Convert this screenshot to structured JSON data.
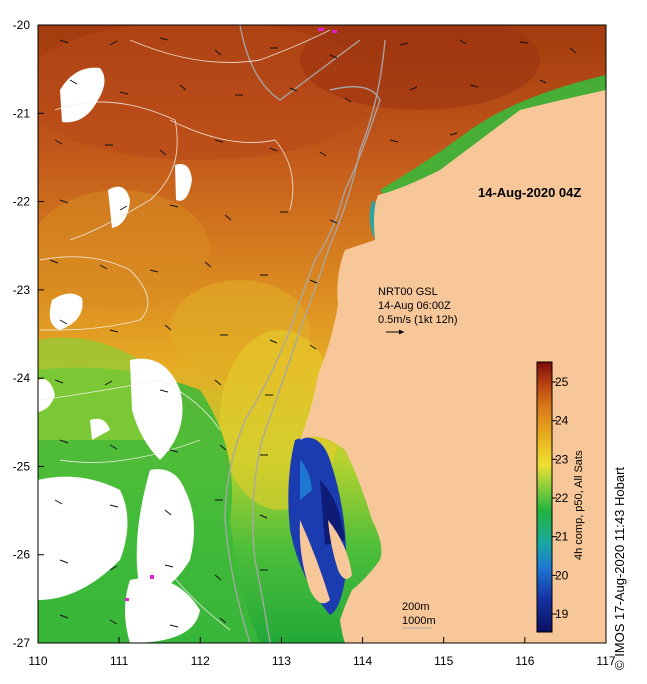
{
  "timestamp": "14-Aug-2020 04Z",
  "overlay": {
    "line1": "NRT00 GSL",
    "line2": "14-Aug 06:00Z",
    "line3": "0.5m/s (1kt 12h)"
  },
  "x_ticks": [
    "110",
    "111",
    "112",
    "113",
    "114",
    "115",
    "116",
    "117"
  ],
  "y_ticks": [
    "-20",
    "-21",
    "-22",
    "-23",
    "-24",
    "-25",
    "-26",
    "-27"
  ],
  "colorbar": {
    "title": "4h comp, p50, All Sats",
    "ticks": [
      "25",
      "24",
      "23",
      "22",
      "21",
      "20",
      "19"
    ],
    "colors": [
      "#7a0c0c",
      "#b23a10",
      "#d8761a",
      "#e8b020",
      "#f0e030",
      "#9ad23c",
      "#22b43c",
      "#18a8a0",
      "#1e78d2",
      "#1432a0",
      "#0a1060"
    ]
  },
  "scale": {
    "depth1": "200m",
    "depth2": "1000m"
  },
  "credit": "© IMOS 17-Aug-2020 11:43 Hobart",
  "colors": {
    "land": "#f7c79a",
    "cloud": "#ffffff",
    "isobath": "#aaaaaa",
    "frame": "#000000"
  }
}
